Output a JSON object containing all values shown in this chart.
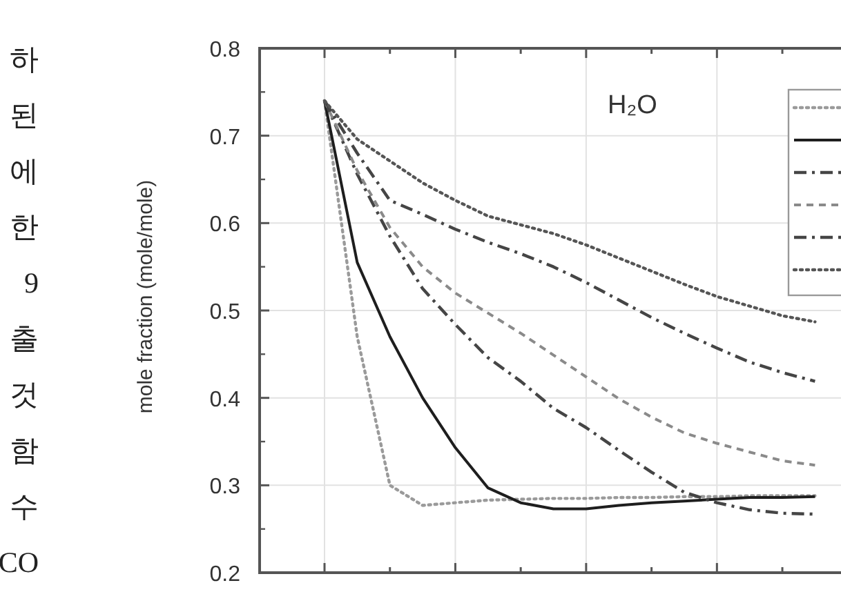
{
  "chart_data": {
    "type": "line",
    "title": "H₂O",
    "ylabel": "mole fraction (mole/mole)",
    "annotations": [
      "하",
      "된",
      "에",
      "한",
      "9",
      "출",
      "것",
      "함",
      "수",
      "CO"
    ],
    "categories": [
      null,
      null,
      null,
      null,
      null,
      null,
      null,
      null,
      null,
      null,
      null,
      null,
      null,
      null,
      null,
      null
    ],
    "ylim": [
      0.2,
      0.8
    ],
    "yticks": [
      0.2,
      0.3,
      0.4,
      0.5,
      0.6,
      0.7,
      0.8
    ],
    "grid": true,
    "series": [
      {
        "color": "#9a9a9a",
        "line_style": "dotted",
        "values": [
          0.74,
          0.47,
          0.3,
          0.277,
          0.28,
          0.283,
          0.284,
          0.285,
          0.285,
          0.286,
          0.286,
          0.287,
          0.287,
          0.288,
          0.288,
          0.288
        ]
      },
      {
        "color": "#1e1e1e",
        "line_style": "solid",
        "values": [
          0.74,
          0.555,
          0.47,
          0.4,
          0.343,
          0.297,
          0.28,
          0.273,
          0.273,
          0.277,
          0.28,
          0.282,
          0.284,
          0.286,
          0.286,
          0.287
        ]
      },
      {
        "color": "#454545",
        "line_style": "dashdot",
        "values": [
          0.74,
          0.656,
          0.585,
          0.525,
          0.484,
          0.446,
          0.419,
          0.388,
          0.366,
          0.34,
          0.315,
          0.292,
          0.28,
          0.272,
          0.268,
          0.267
        ]
      },
      {
        "color": "#8a8a8a",
        "line_style": "dashed",
        "values": [
          0.74,
          0.66,
          0.595,
          0.55,
          0.52,
          0.497,
          0.474,
          0.449,
          0.424,
          0.399,
          0.378,
          0.36,
          0.348,
          0.338,
          0.328,
          0.323
        ]
      },
      {
        "color": "#454545",
        "line_style": "dashdot",
        "values": [
          0.74,
          0.68,
          0.626,
          0.61,
          0.593,
          0.578,
          0.565,
          0.55,
          0.532,
          0.512,
          0.492,
          0.474,
          0.457,
          0.441,
          0.429,
          0.419
        ]
      },
      {
        "color": "#555555",
        "line_style": "dotted",
        "values": [
          0.74,
          0.696,
          0.671,
          0.646,
          0.626,
          0.608,
          0.598,
          0.588,
          0.575,
          0.56,
          0.545,
          0.53,
          0.516,
          0.505,
          0.494,
          0.487
        ]
      }
    ]
  }
}
